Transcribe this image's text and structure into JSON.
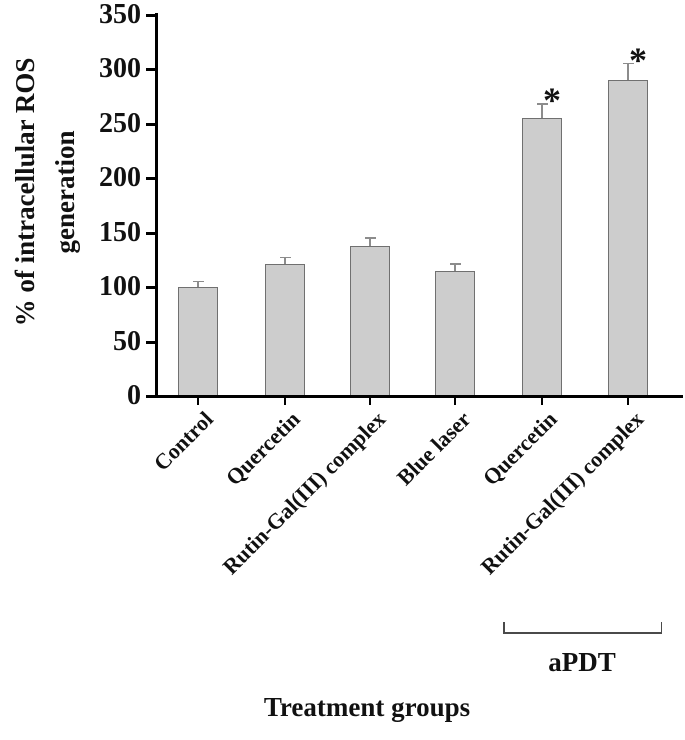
{
  "figure": {
    "background_color": "#ffffff",
    "text_color": "#111111"
  },
  "chart_data": {
    "type": "bar",
    "title": "",
    "xlabel": "Treatment groups",
    "ylabel": "% of intracellular ROS generation",
    "ylabel_lines": [
      "% of intracellular ROS",
      "generation"
    ],
    "categories": [
      "Control",
      "Quercetin",
      "Rutin-Gal(III) complex",
      "Blue laser",
      "Quercetin",
      "Rutin-Gal(III) complex"
    ],
    "values": [
      100,
      121,
      138,
      115,
      255,
      290
    ],
    "error_bars": [
      5,
      6,
      7,
      6,
      13,
      15
    ],
    "significance": [
      "",
      "",
      "",
      "",
      "*",
      "*"
    ],
    "ylim": [
      0,
      350
    ],
    "yticks": [
      0,
      50,
      100,
      150,
      200,
      250,
      300,
      350
    ],
    "grid": false,
    "legend": null,
    "bar_fill_color": "#cdcdcd",
    "bar_border_color": "#707070",
    "error_bar_color": "#8c8c8c",
    "axis_color": "#000000",
    "group_annotation": {
      "label": "aPDT",
      "start_bar_index": 4,
      "end_bar_index": 5
    }
  }
}
